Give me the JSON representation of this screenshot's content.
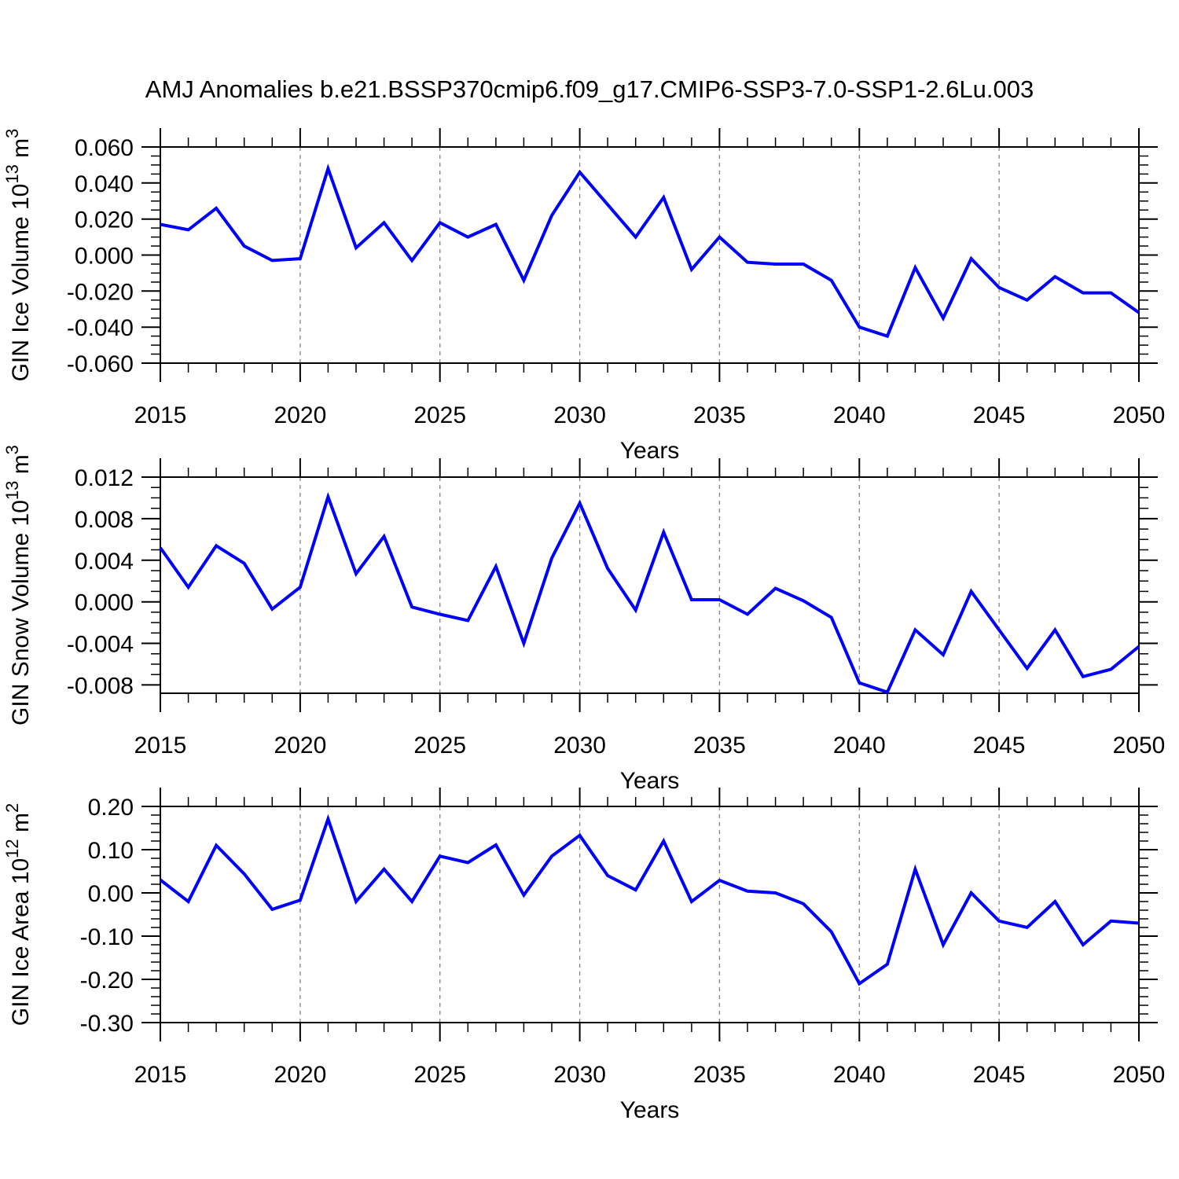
{
  "title": "AMJ Anomalies b.e21.BSSP370cmip6.f09_g17.CMIP6-SSP3-7.0-SSP1-2.6Lu.003",
  "colors": {
    "line": "#0000ff",
    "grid": "#848484",
    "frame": "#000000",
    "text": "#000000",
    "background": "#ffffff"
  },
  "chart_data": [
    {
      "type": "line",
      "panel": "gin-ice-volume",
      "ylabel": "GIN Ice Volume 10^13 m^3",
      "ylabel_parts": [
        {
          "t": "GIN Ice Volume 10"
        },
        {
          "t": "13",
          "sup": true
        },
        {
          "t": " m"
        },
        {
          "t": "3",
          "sup": true
        }
      ],
      "xlabel": "Years",
      "x": [
        2015,
        2016,
        2017,
        2018,
        2019,
        2020,
        2021,
        2022,
        2023,
        2024,
        2025,
        2026,
        2027,
        2028,
        2029,
        2030,
        2031,
        2032,
        2033,
        2034,
        2035,
        2036,
        2037,
        2038,
        2039,
        2040,
        2041,
        2042,
        2043,
        2044,
        2045,
        2046,
        2047,
        2048,
        2049,
        2050
      ],
      "values": [
        0.017,
        0.014,
        0.026,
        0.005,
        -0.003,
        -0.002,
        0.048,
        0.004,
        0.018,
        -0.003,
        0.018,
        0.01,
        0.017,
        -0.014,
        0.022,
        0.046,
        0.028,
        0.01,
        0.032,
        -0.008,
        0.01,
        -0.004,
        -0.005,
        -0.005,
        -0.014,
        -0.04,
        -0.045,
        -0.007,
        -0.035,
        -0.002,
        -0.018,
        -0.025,
        -0.012,
        -0.021,
        -0.021,
        -0.032
      ],
      "xlim": [
        2015,
        2050
      ],
      "ylim": [
        -0.06,
        0.06
      ],
      "xticks": [
        2015,
        2020,
        2025,
        2030,
        2035,
        2040,
        2045,
        2050
      ],
      "xticklabels": [
        "2015",
        "2020",
        "2025",
        "2030",
        "2035",
        "2040",
        "2045",
        "2050"
      ],
      "xtick_minor_step": 1,
      "yticks": [
        0.06,
        0.04,
        0.02,
        0.0,
        -0.02,
        -0.04,
        -0.06
      ],
      "yticklabels": [
        "0.060",
        "0.040",
        "0.020",
        "0.000",
        "-0.020",
        "-0.040",
        "-0.060"
      ],
      "ytick_minor_step": 0.005,
      "gridline_years": [
        2020,
        2025,
        2030,
        2035,
        2040,
        2045
      ],
      "grid": "vertical-dashed",
      "legend": "none"
    },
    {
      "type": "line",
      "panel": "gin-snow-volume",
      "ylabel": "GIN Snow Volume 10^13 m^3",
      "ylabel_parts": [
        {
          "t": "GIN Snow Volume 10"
        },
        {
          "t": "13",
          "sup": true
        },
        {
          "t": " m"
        },
        {
          "t": "3",
          "sup": true
        }
      ],
      "xlabel": "Years",
      "x": [
        2015,
        2016,
        2017,
        2018,
        2019,
        2020,
        2021,
        2022,
        2023,
        2024,
        2025,
        2026,
        2027,
        2028,
        2029,
        2030,
        2031,
        2032,
        2033,
        2034,
        2035,
        2036,
        2037,
        2038,
        2039,
        2040,
        2041,
        2042,
        2043,
        2044,
        2045,
        2046,
        2047,
        2048,
        2049,
        2050
      ],
      "values": [
        0.0052,
        0.0014,
        0.0054,
        0.0037,
        -0.0007,
        0.0014,
        0.0101,
        0.0027,
        0.0063,
        -0.0005,
        -0.0012,
        -0.0018,
        0.0034,
        -0.004,
        0.0042,
        0.0095,
        0.0032,
        -0.0008,
        0.0067,
        0.0002,
        0.0002,
        -0.0012,
        0.0013,
        0.0001,
        -0.0015,
        -0.0078,
        -0.0087,
        -0.0027,
        -0.0051,
        0.001,
        -0.0027,
        -0.0064,
        -0.0027,
        -0.0072,
        -0.0065,
        -0.0043
      ],
      "xlim": [
        2015,
        2050
      ],
      "ylim": [
        -0.0088,
        0.012
      ],
      "xticks": [
        2015,
        2020,
        2025,
        2030,
        2035,
        2040,
        2045,
        2050
      ],
      "xticklabels": [
        "2015",
        "2020",
        "2025",
        "2030",
        "2035",
        "2040",
        "2045",
        "2050"
      ],
      "xtick_minor_step": 1,
      "yticks": [
        0.012,
        0.008,
        0.004,
        0.0,
        -0.004,
        -0.008
      ],
      "yticklabels": [
        "0.012",
        "0.008",
        "0.004",
        "0.000",
        "-0.004",
        "-0.008"
      ],
      "ytick_minor_step": 0.001,
      "gridline_years": [
        2020,
        2025,
        2030,
        2035,
        2040,
        2045
      ],
      "grid": "vertical-dashed",
      "legend": "none"
    },
    {
      "type": "line",
      "panel": "gin-ice-area",
      "ylabel": "GIN Ice Area 10^12 m^2",
      "ylabel_parts": [
        {
          "t": "GIN Ice Area 10"
        },
        {
          "t": "12",
          "sup": true
        },
        {
          "t": " m"
        },
        {
          "t": "2",
          "sup": true
        }
      ],
      "xlabel": "Years",
      "x": [
        2015,
        2016,
        2017,
        2018,
        2019,
        2020,
        2021,
        2022,
        2023,
        2024,
        2025,
        2026,
        2027,
        2028,
        2029,
        2030,
        2031,
        2032,
        2033,
        2034,
        2035,
        2036,
        2037,
        2038,
        2039,
        2040,
        2041,
        2042,
        2043,
        2044,
        2045,
        2046,
        2047,
        2048,
        2049,
        2050
      ],
      "values": [
        0.03,
        -0.02,
        0.11,
        0.044,
        -0.038,
        -0.017,
        0.171,
        -0.02,
        0.055,
        -0.02,
        0.085,
        0.07,
        0.111,
        -0.005,
        0.085,
        0.133,
        0.04,
        0.007,
        0.12,
        -0.02,
        0.029,
        0.004,
        0.0,
        -0.025,
        -0.09,
        -0.21,
        -0.165,
        0.055,
        -0.12,
        0.0,
        -0.065,
        -0.08,
        -0.02,
        -0.12,
        -0.065,
        -0.07
      ],
      "xlim": [
        2015,
        2050
      ],
      "ylim": [
        -0.3,
        0.2
      ],
      "xticks": [
        2015,
        2020,
        2025,
        2030,
        2035,
        2040,
        2045,
        2050
      ],
      "xticklabels": [
        "2015",
        "2020",
        "2025",
        "2030",
        "2035",
        "2040",
        "2045",
        "2050"
      ],
      "xtick_minor_step": 1,
      "yticks": [
        0.2,
        0.1,
        0.0,
        -0.1,
        -0.2,
        -0.3
      ],
      "yticklabels": [
        "0.20",
        "0.10",
        "0.00",
        "-0.10",
        "-0.20",
        "-0.30"
      ],
      "ytick_minor_step": 0.02,
      "gridline_years": [
        2020,
        2025,
        2030,
        2035,
        2040,
        2045
      ],
      "grid": "vertical-dashed",
      "legend": "none"
    }
  ]
}
